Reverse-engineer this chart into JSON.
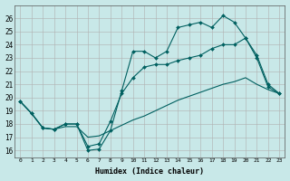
{
  "xlabel": "Humidex (Indice chaleur)",
  "background_color": "#c8e8e8",
  "grid_color": "#b0b0b0",
  "line_color": "#006060",
  "xlim": [
    -0.5,
    23.5
  ],
  "ylim": [
    15.5,
    27.0
  ],
  "yticks": [
    16,
    17,
    18,
    19,
    20,
    21,
    22,
    23,
    24,
    25,
    26
  ],
  "xticks": [
    0,
    1,
    2,
    3,
    4,
    5,
    6,
    7,
    8,
    9,
    10,
    11,
    12,
    13,
    14,
    15,
    16,
    17,
    18,
    19,
    20,
    21,
    22,
    23
  ],
  "line1_x": [
    0,
    1,
    2,
    3,
    4,
    5,
    6,
    7,
    8,
    9,
    10,
    11,
    12,
    13,
    14,
    15,
    16,
    17,
    18,
    19,
    20,
    21,
    22,
    23
  ],
  "line1_y": [
    19.7,
    18.8,
    17.7,
    17.6,
    18.0,
    18.0,
    16.0,
    16.1,
    17.5,
    20.5,
    23.5,
    23.5,
    23.0,
    23.5,
    25.3,
    25.5,
    25.7,
    25.3,
    26.2,
    25.7,
    24.5,
    23.0,
    20.8,
    20.3
  ],
  "line2_x": [
    0,
    1,
    2,
    3,
    4,
    5,
    6,
    7,
    8,
    9,
    10,
    11,
    12,
    13,
    14,
    15,
    16,
    17,
    18,
    19,
    20,
    21,
    22,
    23
  ],
  "line2_y": [
    19.7,
    18.8,
    17.7,
    17.6,
    17.8,
    17.8,
    17.0,
    17.1,
    17.5,
    17.9,
    18.3,
    18.6,
    19.0,
    19.4,
    19.8,
    20.1,
    20.4,
    20.7,
    21.0,
    21.2,
    21.5,
    21.0,
    20.6,
    20.3
  ],
  "line3_x": [
    0,
    1,
    2,
    3,
    4,
    5,
    6,
    7,
    8,
    9,
    10,
    11,
    12,
    13,
    14,
    15,
    16,
    17,
    18,
    19,
    20,
    21,
    22,
    23
  ],
  "line3_y": [
    19.7,
    18.8,
    17.7,
    17.6,
    18.0,
    18.0,
    16.3,
    16.5,
    18.2,
    20.3,
    21.5,
    22.3,
    22.5,
    22.5,
    22.8,
    23.0,
    23.2,
    23.7,
    24.0,
    24.0,
    24.5,
    23.2,
    21.0,
    20.3
  ]
}
